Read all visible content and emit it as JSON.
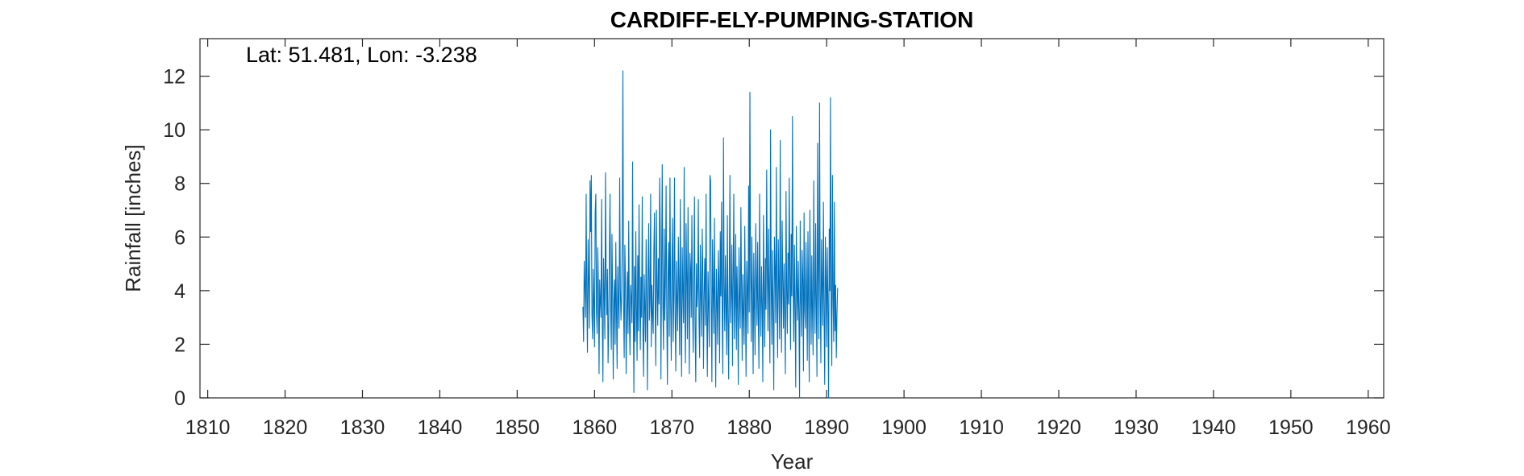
{
  "chart_data": {
    "type": "line",
    "title": "CARDIFF-ELY-PUMPING-STATION",
    "annotation": "Lat: 51.481, Lon: -3.238",
    "xlabel": "Year",
    "ylabel": "Rainfall [inches]",
    "xlim": [
      1809,
      1962
    ],
    "ylim": [
      0,
      13.4
    ],
    "xticks": [
      1810,
      1820,
      1830,
      1840,
      1850,
      1860,
      1870,
      1880,
      1890,
      1900,
      1910,
      1920,
      1930,
      1940,
      1950,
      1960
    ],
    "yticks": [
      0,
      2,
      4,
      6,
      8,
      10,
      12
    ],
    "grid": false,
    "line_color": "#0072bd",
    "series": [
      {
        "x_start": 1858.5,
        "x_step": 0.08333,
        "values": [
          3.4,
          2.1,
          5.1,
          4.2,
          3.0,
          7.6,
          3.8,
          1.7,
          5.9,
          4.4,
          2.6,
          8.1,
          6.2,
          8.3,
          3.1,
          2.2,
          4.8,
          3.5,
          1.9,
          6.9,
          7.6,
          3.2,
          2.4,
          5.6,
          4.1,
          0.9,
          4.4,
          3.6,
          3.0,
          7.4,
          2.8,
          0.6,
          5.2,
          3.9,
          2.2,
          8.4,
          4.6,
          3.1,
          4.8,
          1.3,
          2.7,
          5.4,
          7.6,
          3.3,
          1.8,
          6.1,
          4.0,
          0.7,
          3.6,
          4.4,
          2.0,
          5.8,
          3.2,
          1.1,
          4.9,
          3.5,
          2.6,
          8.2,
          4.1,
          2.9,
          3.8,
          6.0,
          12.2,
          3.4,
          1.5,
          5.7,
          4.3,
          0.9,
          3.1,
          4.7,
          2.4,
          6.6,
          3.0,
          1.6,
          4.2,
          3.7,
          2.8,
          8.8,
          3.6,
          0.2,
          4.9,
          2.1,
          6.2,
          3.3,
          1.4,
          5.3,
          2.5,
          7.2,
          3.9,
          1.8,
          4.5,
          3.0,
          7.5,
          2.6,
          0.8,
          4.6,
          3.4,
          2.1,
          5.9,
          3.7,
          0.3,
          4.4,
          6.5,
          2.9,
          3.6,
          7.6,
          1.9,
          4.2,
          3.1,
          2.4,
          5.5,
          6.9,
          3.3,
          1.2,
          7.0,
          4.1,
          2.7,
          5.2,
          3.5,
          8.2,
          6.1,
          0.7,
          4.8,
          8.7,
          3.4,
          1.8,
          6.3,
          2.9,
          4.4,
          7.9,
          3.2,
          0.5,
          4.6,
          5.8,
          2.3,
          8.2,
          3.6,
          1.4,
          4.9,
          6.7,
          2.1,
          3.8,
          8.2,
          3.0,
          1.0,
          5.1,
          3.7,
          2.5,
          6.0,
          4.2,
          1.6,
          7.4,
          3.5,
          0.8,
          5.6,
          4.0,
          2.8,
          8.6,
          3.3,
          1.3,
          6.5,
          4.5,
          2.2,
          7.1,
          3.9,
          0.9,
          5.4,
          4.8,
          3.0,
          6.8,
          3.6,
          1.7,
          4.3,
          7.5,
          2.6,
          0.6,
          5.0,
          3.4,
          4.1,
          7.4,
          2.9,
          1.5,
          5.7,
          3.8,
          2.3,
          6.3,
          4.6,
          1.1,
          3.9,
          5.2,
          2.7,
          7.6,
          3.2,
          0.8,
          4.7,
          3.5,
          1.9,
          8.3,
          8.1,
          3.7,
          0.6,
          5.9,
          4.0,
          2.4,
          6.7,
          3.1,
          0.4,
          4.8,
          3.6,
          2.0,
          5.5,
          4.3,
          1.3,
          6.2,
          3.8,
          7.3,
          2.9,
          0.9,
          9.7,
          4.1,
          2.5,
          5.3,
          3.4,
          1.6,
          6.8,
          3.0,
          0.7,
          4.5,
          8.3,
          2.8,
          3.9,
          5.7,
          1.2,
          4.4,
          7.6,
          2.2,
          3.5,
          6.1,
          1.8,
          4.9,
          3.3,
          0.5,
          5.6,
          3.7,
          2.6,
          7.1,
          4.2,
          1.4,
          4.6,
          3.1,
          2.0,
          6.4,
          3.6,
          0.8,
          5.1,
          4.0,
          2.4,
          7.9,
          3.2,
          11.4,
          4.7,
          2.1,
          6.0,
          3.9,
          0.9,
          5.4,
          3.4,
          1.6,
          6.5,
          4.3,
          2.7,
          5.8,
          3.0,
          1.1,
          7.6,
          3.8,
          2.3,
          4.9,
          3.5,
          0.6,
          6.8,
          4.1,
          1.9,
          5.2,
          3.3,
          8.5,
          4.6,
          2.5,
          6.3,
          3.7,
          1.3,
          10.0,
          4.4,
          2.0,
          5.5,
          3.2,
          0.3,
          6.0,
          4.8,
          2.8,
          8.6,
          3.6,
          1.5,
          5.9,
          4.2,
          2.2,
          9.6,
          3.9,
          1.7,
          6.6,
          4.5,
          2.6,
          5.0,
          3.1,
          0.9,
          7.7,
          4.0,
          2.4,
          5.4,
          3.5,
          8.2,
          4.7,
          1.8,
          6.1,
          3.8,
          10.5,
          4.3,
          2.1,
          5.7,
          3.4,
          0.4,
          6.4,
          4.1,
          2.9,
          5.1,
          3.0,
          0.0,
          6.6,
          3.7,
          2.3,
          5.5,
          4.4,
          1.0,
          6.9,
          3.3,
          2.6,
          5.8,
          4.0,
          1.4,
          6.2,
          3.6,
          0.6,
          7.0,
          4.3,
          2.0,
          5.3,
          3.2,
          1.6,
          8.1,
          3.9,
          2.4,
          6.5,
          3.4,
          0.8,
          9.5,
          4.6,
          2.2,
          11.0,
          3.8,
          1.3,
          5.9,
          4.2,
          2.7,
          7.3,
          3.1,
          0.5,
          6.0,
          4.5,
          1.9,
          5.6,
          3.5,
          0.0,
          6.3,
          4.0,
          11.2,
          3.3,
          1.2,
          8.3,
          3.7,
          2.1,
          7.3,
          2.5,
          4.2,
          1.5,
          3.1,
          4.1
        ]
      }
    ]
  }
}
